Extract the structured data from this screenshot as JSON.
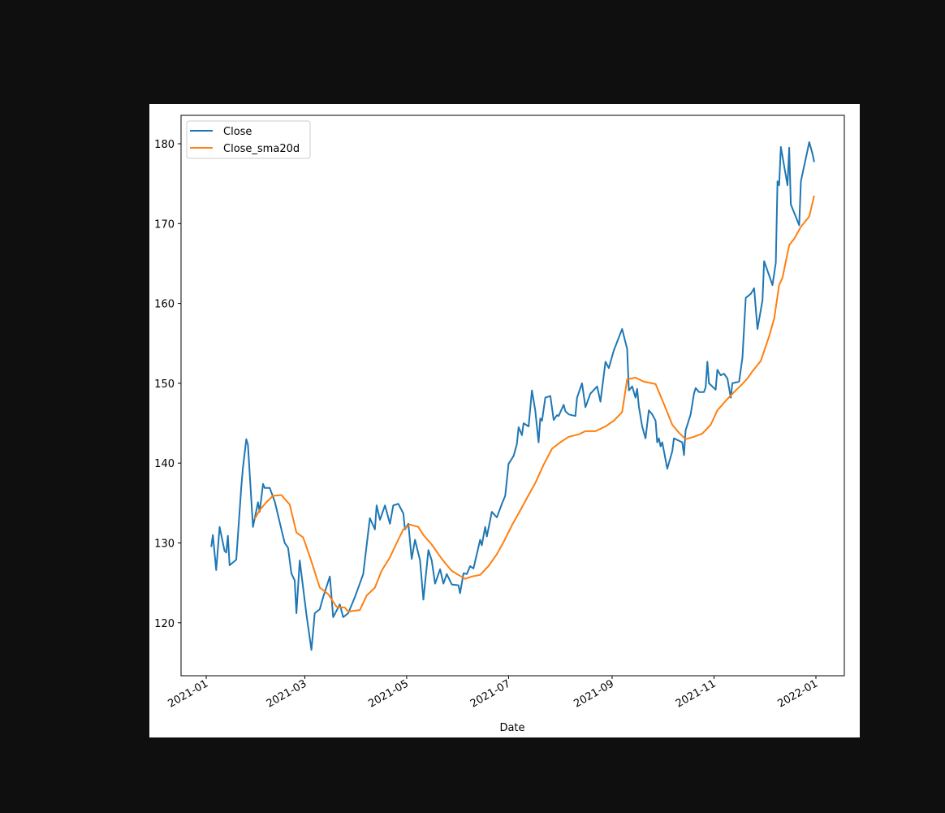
{
  "chart_data": {
    "type": "line",
    "title": "",
    "xlabel": "Date",
    "ylabel": "",
    "ylim": [
      113.3,
      183.4
    ],
    "xlim": [
      "2020-12-17",
      "2022-01-17"
    ],
    "grid": false,
    "legend_position": "upper left",
    "x_ticks": [
      "2021-01",
      "2021-03",
      "2021-05",
      "2021-07",
      "2021-09",
      "2021-11",
      "2022-01"
    ],
    "y_ticks": [
      120,
      130,
      140,
      150,
      160,
      170,
      180
    ],
    "series": [
      {
        "name": "Close",
        "color": "#1f77b4",
        "points": [
          [
            "2021-01-04",
            129.5
          ],
          [
            "2021-01-05",
            131.0
          ],
          [
            "2021-01-07",
            126.6
          ],
          [
            "2021-01-09",
            132.0
          ],
          [
            "2021-01-12",
            129.0
          ],
          [
            "2021-01-13",
            128.8
          ],
          [
            "2021-01-14",
            130.9
          ],
          [
            "2021-01-15",
            127.2
          ],
          [
            "2021-01-19",
            127.9
          ],
          [
            "2021-01-22",
            137.0
          ],
          [
            "2021-01-23",
            139.5
          ],
          [
            "2021-01-25",
            143.0
          ],
          [
            "2021-01-26",
            142.3
          ],
          [
            "2021-01-29",
            132.0
          ],
          [
            "2021-02-01",
            135.1
          ],
          [
            "2021-02-02",
            133.9
          ],
          [
            "2021-02-04",
            137.4
          ],
          [
            "2021-02-05",
            136.9
          ],
          [
            "2021-02-08",
            136.9
          ],
          [
            "2021-02-11",
            135.2
          ],
          [
            "2021-02-15",
            131.7
          ],
          [
            "2021-02-17",
            130.0
          ],
          [
            "2021-02-19",
            129.4
          ],
          [
            "2021-02-21",
            126.2
          ],
          [
            "2021-02-23",
            125.3
          ],
          [
            "2021-02-24",
            121.2
          ],
          [
            "2021-02-26",
            127.8
          ],
          [
            "2021-03-02",
            121.0
          ],
          [
            "2021-03-05",
            116.6
          ],
          [
            "2021-03-07",
            121.2
          ],
          [
            "2021-03-10",
            121.7
          ],
          [
            "2021-03-12",
            123.2
          ],
          [
            "2021-03-16",
            125.8
          ],
          [
            "2021-03-18",
            120.7
          ],
          [
            "2021-03-22",
            122.3
          ],
          [
            "2021-03-24",
            120.7
          ],
          [
            "2021-03-27",
            121.2
          ],
          [
            "2021-03-31",
            123.2
          ],
          [
            "2021-04-05",
            126.1
          ],
          [
            "2021-04-09",
            133.1
          ],
          [
            "2021-04-12",
            131.7
          ],
          [
            "2021-04-13",
            134.7
          ],
          [
            "2021-04-15",
            132.9
          ],
          [
            "2021-04-18",
            134.7
          ],
          [
            "2021-04-21",
            132.4
          ],
          [
            "2021-04-23",
            134.7
          ],
          [
            "2021-04-26",
            134.9
          ],
          [
            "2021-04-29",
            133.7
          ],
          [
            "2021-04-30",
            131.7
          ],
          [
            "2021-05-02",
            132.4
          ],
          [
            "2021-05-04",
            128.0
          ],
          [
            "2021-05-06",
            130.4
          ],
          [
            "2021-05-09",
            127.8
          ],
          [
            "2021-05-11",
            122.9
          ],
          [
            "2021-05-14",
            129.1
          ],
          [
            "2021-05-16",
            127.8
          ],
          [
            "2021-05-18",
            124.9
          ],
          [
            "2021-05-21",
            126.7
          ],
          [
            "2021-05-23",
            124.9
          ],
          [
            "2021-05-25",
            126.1
          ],
          [
            "2021-05-28",
            124.8
          ],
          [
            "2021-06-01",
            124.7
          ],
          [
            "2021-06-02",
            123.7
          ],
          [
            "2021-06-04",
            126.2
          ],
          [
            "2021-06-06",
            126.1
          ],
          [
            "2021-06-08",
            127.1
          ],
          [
            "2021-06-10",
            126.8
          ],
          [
            "2021-06-14",
            130.4
          ],
          [
            "2021-06-15",
            129.7
          ],
          [
            "2021-06-17",
            132.0
          ],
          [
            "2021-06-18",
            130.8
          ],
          [
            "2021-06-21",
            133.9
          ],
          [
            "2021-06-24",
            133.2
          ],
          [
            "2021-06-27",
            134.9
          ],
          [
            "2021-06-29",
            135.9
          ],
          [
            "2021-07-01",
            139.9
          ],
          [
            "2021-07-04",
            140.9
          ],
          [
            "2021-07-06",
            142.4
          ],
          [
            "2021-07-07",
            144.5
          ],
          [
            "2021-07-09",
            143.5
          ],
          [
            "2021-07-10",
            145.0
          ],
          [
            "2021-07-13",
            144.6
          ],
          [
            "2021-07-15",
            149.1
          ],
          [
            "2021-07-17",
            146.6
          ],
          [
            "2021-07-19",
            142.6
          ],
          [
            "2021-07-20",
            145.6
          ],
          [
            "2021-07-21",
            145.3
          ],
          [
            "2021-07-23",
            148.2
          ],
          [
            "2021-07-26",
            148.4
          ],
          [
            "2021-07-28",
            145.4
          ],
          [
            "2021-07-30",
            146.0
          ],
          [
            "2021-07-31",
            145.9
          ],
          [
            "2021-08-03",
            147.3
          ],
          [
            "2021-08-04",
            146.5
          ],
          [
            "2021-08-06",
            146.1
          ],
          [
            "2021-08-10",
            145.9
          ],
          [
            "2021-08-11",
            148.2
          ],
          [
            "2021-08-14",
            150.0
          ],
          [
            "2021-08-16",
            147.0
          ],
          [
            "2021-08-19",
            148.7
          ],
          [
            "2021-08-23",
            149.6
          ],
          [
            "2021-08-25",
            147.7
          ],
          [
            "2021-08-28",
            152.7
          ],
          [
            "2021-08-30",
            151.9
          ],
          [
            "2021-09-02",
            154.1
          ],
          [
            "2021-09-07",
            156.8
          ],
          [
            "2021-09-10",
            154.3
          ],
          [
            "2021-09-11",
            149.1
          ],
          [
            "2021-09-13",
            149.6
          ],
          [
            "2021-09-15",
            148.2
          ],
          [
            "2021-09-16",
            149.3
          ],
          [
            "2021-09-17",
            147.1
          ],
          [
            "2021-09-19",
            144.6
          ],
          [
            "2021-09-21",
            143.1
          ],
          [
            "2021-09-23",
            146.6
          ],
          [
            "2021-09-25",
            146.1
          ],
          [
            "2021-09-27",
            145.3
          ],
          [
            "2021-09-28",
            142.6
          ],
          [
            "2021-09-29",
            143.1
          ],
          [
            "2021-09-30",
            142.1
          ],
          [
            "2021-10-01",
            142.6
          ],
          [
            "2021-10-04",
            139.3
          ],
          [
            "2021-10-07",
            141.5
          ],
          [
            "2021-10-08",
            143.1
          ],
          [
            "2021-10-13",
            142.6
          ],
          [
            "2021-10-14",
            141.0
          ],
          [
            "2021-10-15",
            144.1
          ],
          [
            "2021-10-18",
            146.1
          ],
          [
            "2021-10-20",
            148.7
          ],
          [
            "2021-10-21",
            149.4
          ],
          [
            "2021-10-23",
            148.9
          ],
          [
            "2021-10-26",
            148.9
          ],
          [
            "2021-10-27",
            149.5
          ],
          [
            "2021-10-28",
            152.7
          ],
          [
            "2021-10-29",
            150.0
          ],
          [
            "2021-11-02",
            149.2
          ],
          [
            "2021-11-03",
            151.7
          ],
          [
            "2021-11-05",
            151.0
          ],
          [
            "2021-11-07",
            151.2
          ],
          [
            "2021-11-09",
            150.6
          ],
          [
            "2021-11-11",
            148.2
          ],
          [
            "2021-11-12",
            150.0
          ],
          [
            "2021-11-16",
            150.2
          ],
          [
            "2021-11-18",
            153.2
          ],
          [
            "2021-11-20",
            160.7
          ],
          [
            "2021-11-23",
            161.2
          ],
          [
            "2021-11-25",
            161.9
          ],
          [
            "2021-11-27",
            156.8
          ],
          [
            "2021-11-30",
            160.4
          ],
          [
            "2021-12-01",
            165.3
          ],
          [
            "2021-12-04",
            163.5
          ],
          [
            "2021-12-06",
            162.3
          ],
          [
            "2021-12-08",
            165.1
          ],
          [
            "2021-12-09",
            175.3
          ],
          [
            "2021-12-10",
            174.8
          ],
          [
            "2021-12-11",
            179.6
          ],
          [
            "2021-12-15",
            174.8
          ],
          [
            "2021-12-16",
            179.5
          ],
          [
            "2021-12-17",
            172.4
          ],
          [
            "2021-12-22",
            169.8
          ],
          [
            "2021-12-23",
            175.3
          ],
          [
            "2021-12-28",
            180.2
          ],
          [
            "2021-12-30",
            178.7
          ],
          [
            "2021-12-31",
            177.7
          ]
        ]
      },
      {
        "name": "Close_sma20d",
        "color": "#ff7f0e",
        "points": [
          [
            "2021-01-30",
            133.0
          ],
          [
            "2021-02-02",
            134.1
          ],
          [
            "2021-02-06",
            135.1
          ],
          [
            "2021-02-10",
            135.9
          ],
          [
            "2021-02-15",
            136.0
          ],
          [
            "2021-02-20",
            134.8
          ],
          [
            "2021-02-24",
            131.3
          ],
          [
            "2021-02-28",
            130.7
          ],
          [
            "2021-03-04",
            128.3
          ],
          [
            "2021-03-10",
            124.4
          ],
          [
            "2021-03-15",
            123.6
          ],
          [
            "2021-03-20",
            122.0
          ],
          [
            "2021-03-25",
            121.9
          ],
          [
            "2021-03-27",
            121.4
          ],
          [
            "2021-04-03",
            121.6
          ],
          [
            "2021-04-07",
            123.4
          ],
          [
            "2021-04-12",
            124.4
          ],
          [
            "2021-04-16",
            126.5
          ],
          [
            "2021-04-21",
            128.2
          ],
          [
            "2021-04-25",
            130.0
          ],
          [
            "2021-04-29",
            131.7
          ],
          [
            "2021-05-03",
            132.3
          ],
          [
            "2021-05-08",
            132.0
          ],
          [
            "2021-05-11",
            131.0
          ],
          [
            "2021-05-16",
            129.8
          ],
          [
            "2021-05-21",
            128.3
          ],
          [
            "2021-05-24",
            127.5
          ],
          [
            "2021-05-28",
            126.5
          ],
          [
            "2021-06-01",
            126.0
          ],
          [
            "2021-06-05",
            125.5
          ],
          [
            "2021-06-09",
            125.8
          ],
          [
            "2021-06-14",
            126.0
          ],
          [
            "2021-06-19",
            127.1
          ],
          [
            "2021-06-24",
            128.6
          ],
          [
            "2021-06-28",
            130.1
          ],
          [
            "2021-07-03",
            132.2
          ],
          [
            "2021-07-07",
            133.7
          ],
          [
            "2021-07-13",
            136.0
          ],
          [
            "2021-07-17",
            137.5
          ],
          [
            "2021-07-22",
            139.8
          ],
          [
            "2021-07-27",
            141.8
          ],
          [
            "2021-08-01",
            142.6
          ],
          [
            "2021-08-06",
            143.3
          ],
          [
            "2021-08-12",
            143.6
          ],
          [
            "2021-08-16",
            144.0
          ],
          [
            "2021-08-22",
            144.0
          ],
          [
            "2021-08-28",
            144.6
          ],
          [
            "2021-09-02",
            145.3
          ],
          [
            "2021-09-07",
            146.4
          ],
          [
            "2021-09-10",
            150.5
          ],
          [
            "2021-09-15",
            150.7
          ],
          [
            "2021-09-20",
            150.2
          ],
          [
            "2021-09-27",
            149.9
          ],
          [
            "2021-10-02",
            147.4
          ],
          [
            "2021-10-07",
            144.8
          ],
          [
            "2021-10-11",
            143.8
          ],
          [
            "2021-10-15",
            143.0
          ],
          [
            "2021-10-20",
            143.3
          ],
          [
            "2021-10-25",
            143.7
          ],
          [
            "2021-10-30",
            144.8
          ],
          [
            "2021-11-03",
            146.6
          ],
          [
            "2021-11-08",
            147.8
          ],
          [
            "2021-11-13",
            148.9
          ],
          [
            "2021-11-17",
            149.7
          ],
          [
            "2021-11-21",
            150.6
          ],
          [
            "2021-11-24",
            151.5
          ],
          [
            "2021-11-29",
            152.8
          ],
          [
            "2021-12-04",
            155.9
          ],
          [
            "2021-12-07",
            158.1
          ],
          [
            "2021-12-10",
            162.3
          ],
          [
            "2021-12-12",
            163.2
          ],
          [
            "2021-12-16",
            167.3
          ],
          [
            "2021-12-19",
            168.1
          ],
          [
            "2021-12-23",
            169.6
          ],
          [
            "2021-12-28",
            170.9
          ],
          [
            "2021-12-31",
            173.5
          ]
        ]
      }
    ]
  },
  "legend": {
    "items": [
      {
        "label": "Close",
        "color": "#1f77b4"
      },
      {
        "label": "Close_sma20d",
        "color": "#ff7f0e"
      }
    ]
  },
  "axes": {
    "xlabel": "Date",
    "x_tick_labels": [
      "2021-01",
      "2021-03",
      "2021-05",
      "2021-07",
      "2021-09",
      "2021-11",
      "2022-01"
    ],
    "y_tick_labels": [
      "120",
      "130",
      "140",
      "150",
      "160",
      "170",
      "180"
    ]
  }
}
